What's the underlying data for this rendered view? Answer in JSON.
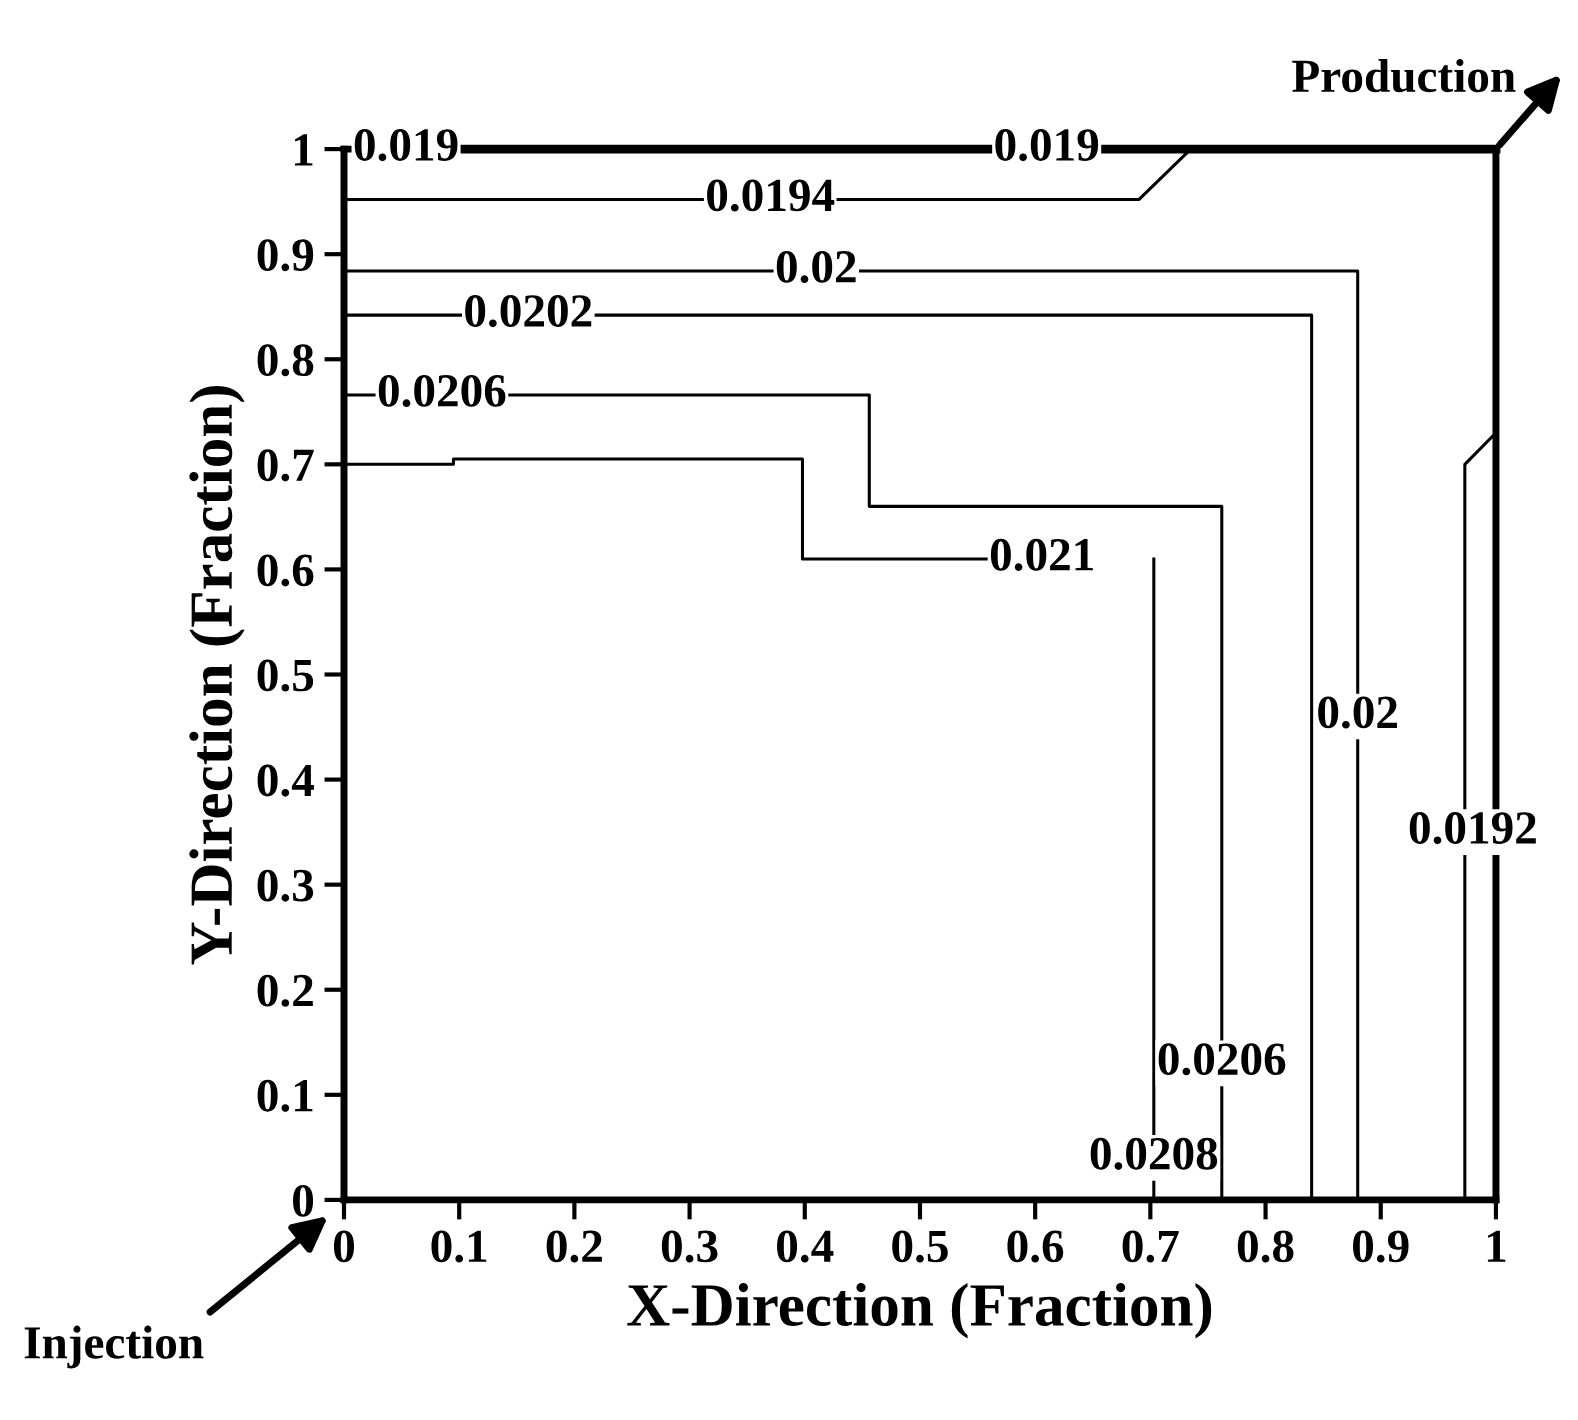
{
  "chart_data": {
    "type": "line",
    "xlabel": "X-Direction (Fraction)",
    "ylabel": "Y-Direction (Fraction)",
    "xlim": [
      0,
      1
    ],
    "ylim": [
      0,
      1
    ],
    "xticks": [
      0,
      0.1,
      0.2,
      0.3,
      0.4,
      0.5,
      0.6,
      0.7,
      0.8,
      0.9,
      1
    ],
    "yticks": [
      0,
      0.1,
      0.2,
      0.3,
      0.4,
      0.5,
      0.6,
      0.7,
      0.8,
      0.9,
      1
    ],
    "grid": false,
    "legend": false,
    "marker": "none",
    "line_style": "solid",
    "series": [
      {
        "color": "#000000",
        "x": [
          0.1,
          1
        ],
        "values": [
          1,
          1
        ]
      },
      {
        "color": "#000000",
        "x": [
          0,
          0.69,
          0.735
        ],
        "values": [
          0.952,
          0.952,
          1
        ]
      },
      {
        "color": "#000000",
        "x": [
          0,
          0.88,
          0.88
        ],
        "values": [
          0.884,
          0.884,
          0
        ]
      },
      {
        "color": "#000000",
        "x": [
          0,
          0.84,
          0.84
        ],
        "values": [
          0.842,
          0.842,
          0
        ]
      },
      {
        "color": "#000000",
        "x": [
          0,
          0.456,
          0.456,
          0.762,
          0.762
        ],
        "values": [
          0.766,
          0.766,
          0.66,
          0.66,
          0
        ]
      },
      {
        "color": "#000000",
        "x": [
          0,
          0.095,
          0.095,
          0.398,
          0.398,
          0.56
        ],
        "values": [
          0.7,
          0.7,
          0.705,
          0.705,
          0.61,
          0.61
        ]
      },
      {
        "color": "#000000",
        "x": [
          0.703,
          0.703
        ],
        "values": [
          0.61,
          0
        ]
      },
      {
        "color": "#000000",
        "x": [
          0.973,
          0.973,
          1
        ],
        "values": [
          0,
          0.7,
          0.73
        ]
      }
    ],
    "annotations": [
      {
        "text": "0.019",
        "x": 0.1,
        "y": 1.0
      },
      {
        "text": "0.019",
        "x": 0.61,
        "y": 1.0
      },
      {
        "text": "0.0194",
        "x": 0.37,
        "y": 0.952
      },
      {
        "text": "0.02",
        "x": 0.41,
        "y": 0.884
      },
      {
        "text": "0.0202",
        "x": 0.16,
        "y": 0.842
      },
      {
        "text": "0.0206",
        "x": 0.085,
        "y": 0.766
      },
      {
        "text": "0.021",
        "x": 0.56,
        "y": 0.61
      },
      {
        "text": "0.02",
        "x": 0.88,
        "y": 0.46
      },
      {
        "text": "0.0192",
        "x": 0.98,
        "y": 0.35
      },
      {
        "text": "0.0206",
        "x": 0.762,
        "y": 0.13
      },
      {
        "text": "0.0208",
        "x": 0.703,
        "y": 0.04
      },
      "Production",
      "Injection"
    ]
  }
}
